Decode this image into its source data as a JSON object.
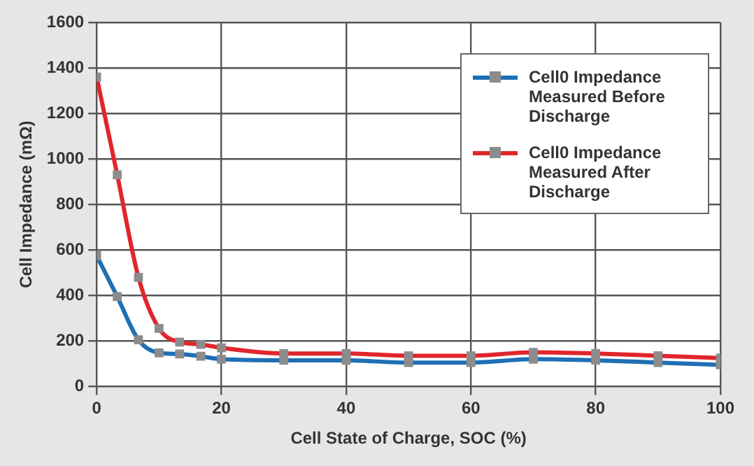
{
  "chart_data": {
    "type": "line",
    "xlabel": "Cell State of Charge, SOC (%)",
    "ylabel": "Cell Impedance (mΩ)",
    "x": [
      0,
      3.3,
      6.7,
      10,
      13.3,
      16.7,
      20,
      30,
      40,
      50,
      60,
      70,
      80,
      90,
      100
    ],
    "series": [
      {
        "name": "Cell0 Impedance Measured Before Discharge",
        "color": "#1f6fb4",
        "values": [
          575,
          395,
          205,
          148,
          143,
          133,
          120,
          115,
          115,
          105,
          105,
          120,
          115,
          105,
          95
        ]
      },
      {
        "name": "Cell0 Impedance Measured After Discharge",
        "color": "#e0262b",
        "values": [
          1360,
          930,
          480,
          255,
          195,
          185,
          170,
          145,
          145,
          135,
          135,
          150,
          145,
          135,
          125
        ]
      }
    ],
    "xlim": [
      0,
      100
    ],
    "xticks": [
      0,
      20,
      40,
      60,
      80,
      100
    ],
    "ylim": [
      0,
      1600
    ],
    "yticks": [
      0,
      200,
      400,
      600,
      800,
      1000,
      1200,
      1400,
      1600
    ],
    "grid": true,
    "legend": "top right",
    "marker": "square",
    "line_style": "solid"
  }
}
